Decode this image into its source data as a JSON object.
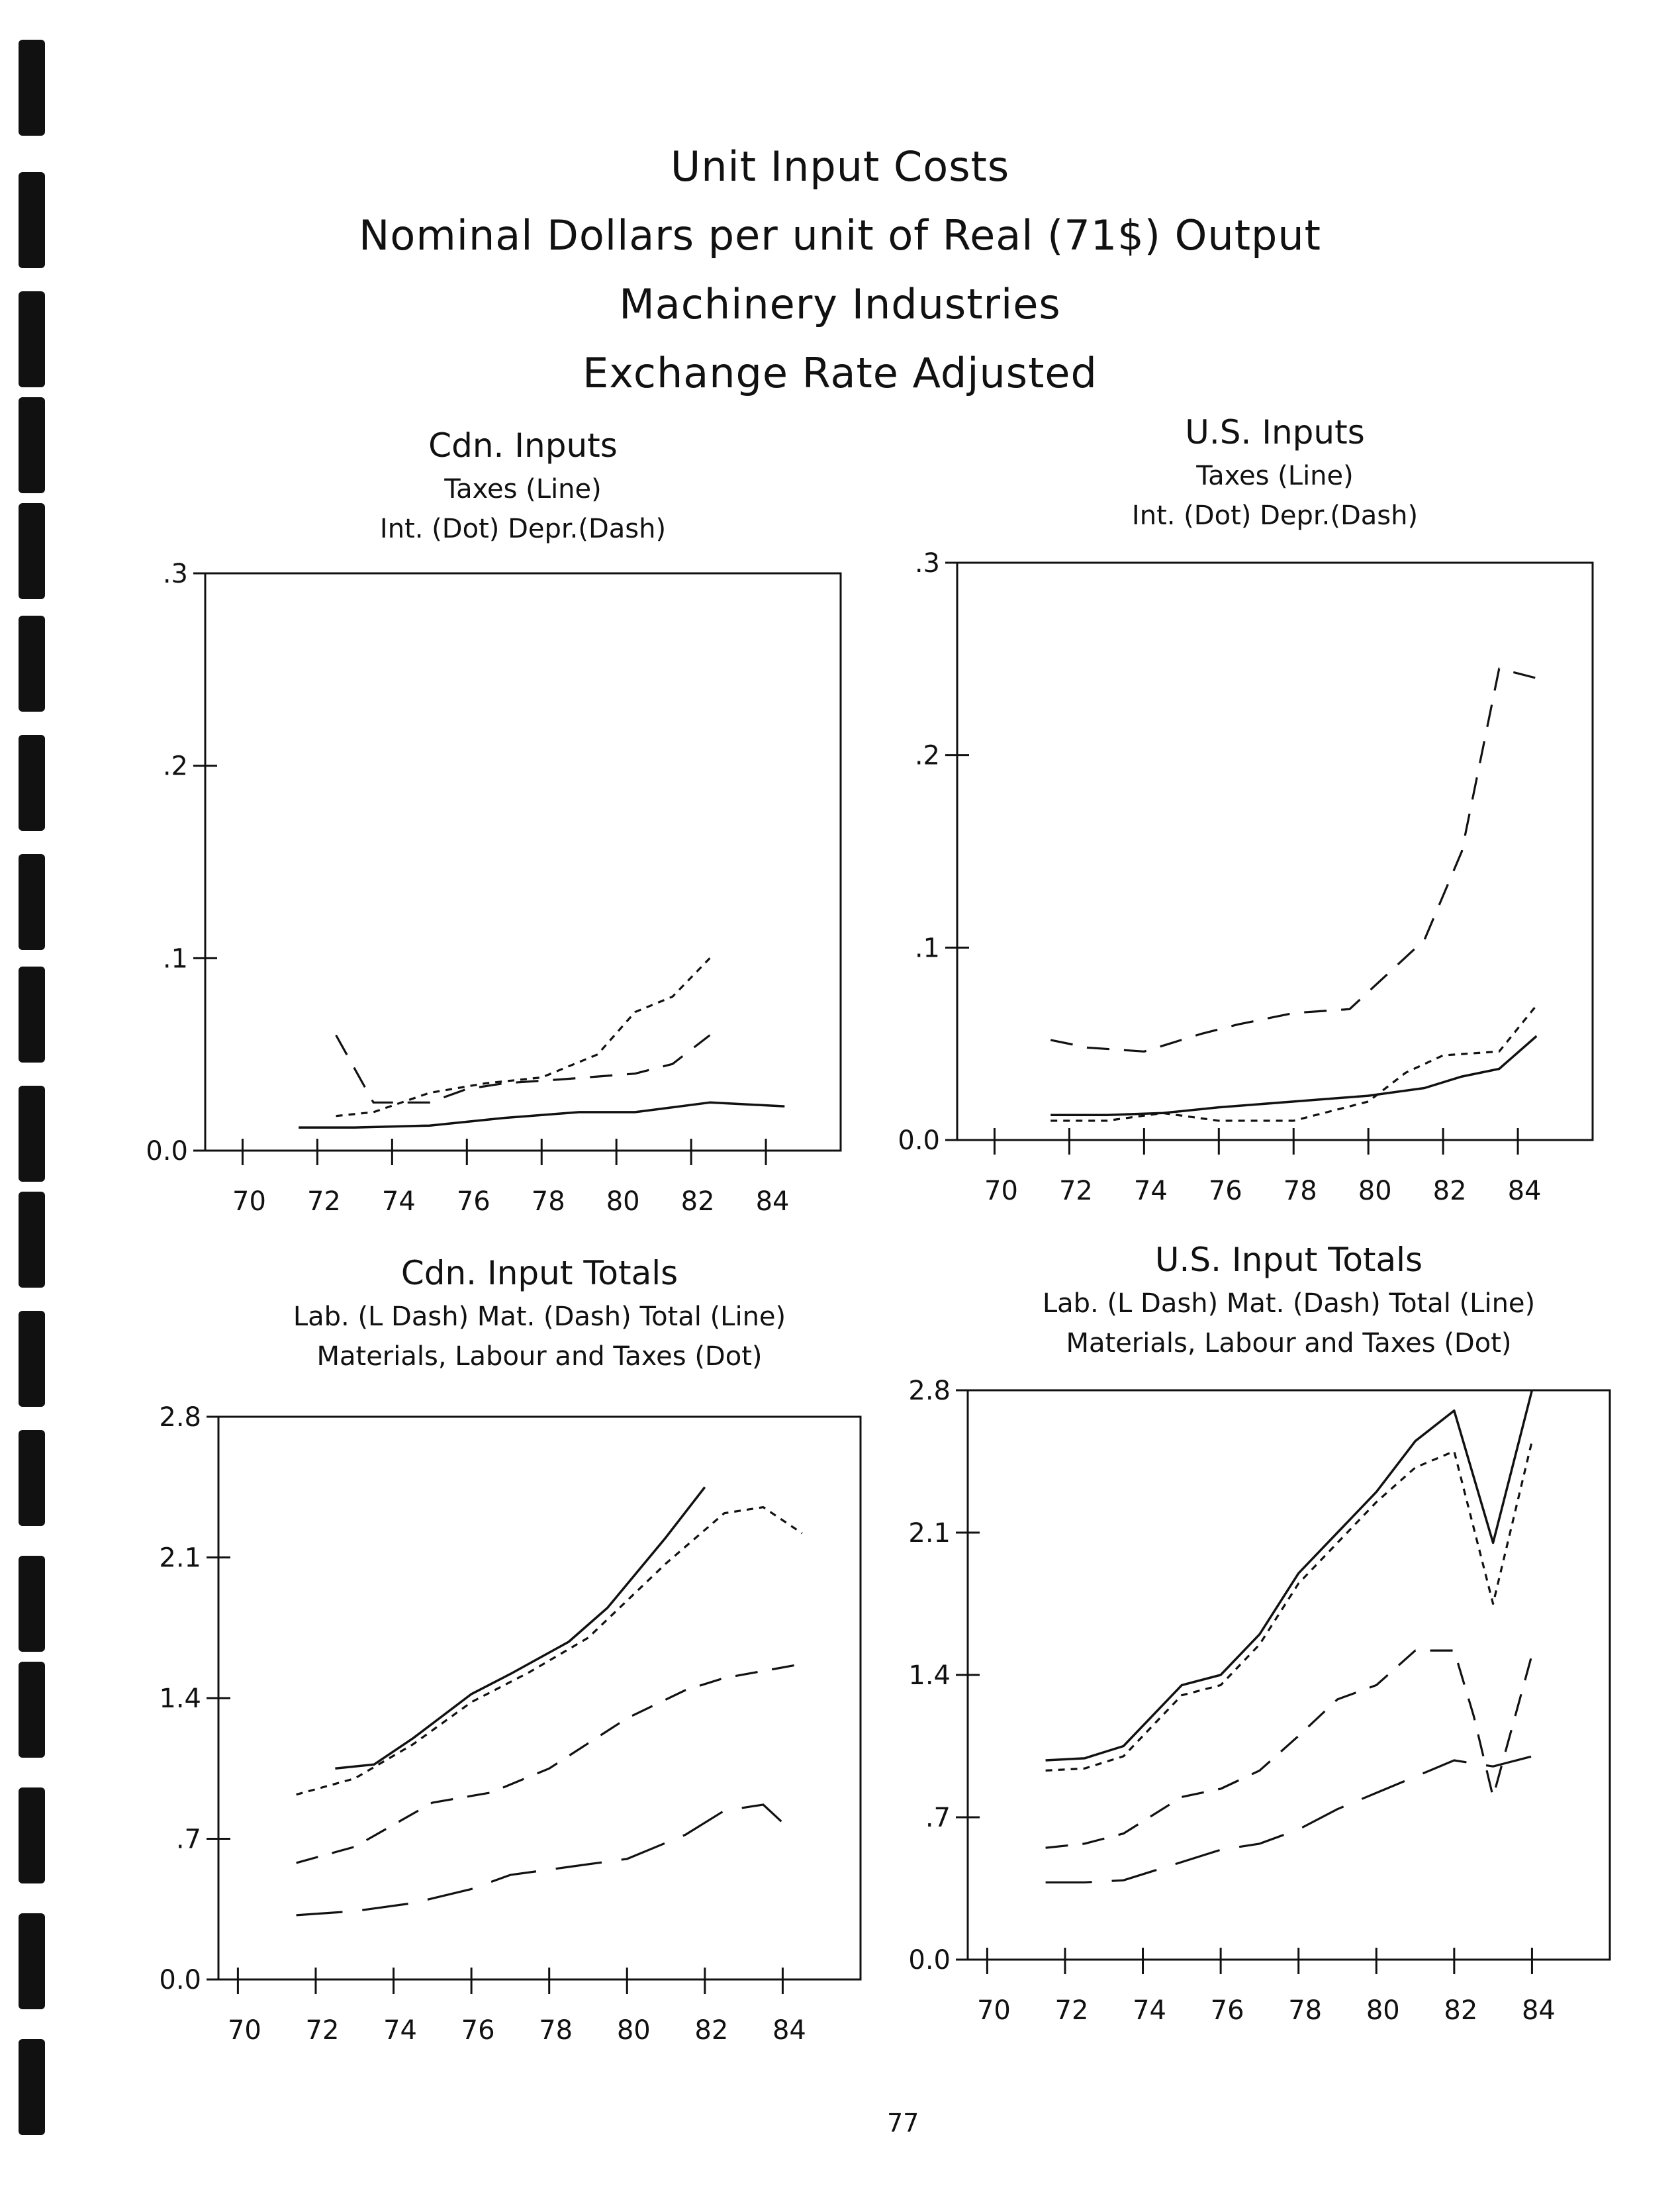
{
  "page": {
    "title_lines": [
      "Unit Input Costs",
      "Nominal Dollars per unit of Real (71$) Output",
      "Machinery Industries",
      "Exchange Rate Adjusted"
    ],
    "page_number": "77"
  },
  "chart_data": [
    {
      "type": "line",
      "title": "Cdn. Inputs",
      "subtitle_lines": [
        "Taxes (Line)",
        "Int. (Dot)      Depr.(Dash)"
      ],
      "xlim": [
        69,
        86
      ],
      "ylim": [
        0,
        0.3
      ],
      "x_ticks": [
        "70",
        "72",
        "74",
        "76",
        "78",
        "80",
        "82",
        "84"
      ],
      "y_ticks": [
        "0.0",
        ".1",
        ".2",
        ".3"
      ],
      "series": [
        {
          "name": "Taxes",
          "style": "line",
          "points": [
            [
              71.5,
              0.012
            ],
            [
              73,
              0.012
            ],
            [
              75,
              0.013
            ],
            [
              77,
              0.017
            ],
            [
              79,
              0.02
            ],
            [
              80.5,
              0.02
            ],
            [
              82.5,
              0.025
            ],
            [
              84.5,
              0.023
            ]
          ]
        },
        {
          "name": "Int.",
          "style": "dot",
          "points": [
            [
              72.5,
              0.018
            ],
            [
              73.5,
              0.02
            ],
            [
              75,
              0.03
            ],
            [
              76.5,
              0.035
            ],
            [
              78,
              0.038
            ],
            [
              79.5,
              0.05
            ],
            [
              80.5,
              0.072
            ],
            [
              81.5,
              0.08
            ],
            [
              82.5,
              0.1
            ]
          ]
        },
        {
          "name": "Depr.",
          "style": "dash",
          "points": [
            [
              72.5,
              0.06
            ],
            [
              73.5,
              0.025
            ],
            [
              75,
              0.025
            ],
            [
              76,
              0.032
            ],
            [
              77,
              0.035
            ],
            [
              78.5,
              0.037
            ],
            [
              80.5,
              0.04
            ],
            [
              81.5,
              0.045
            ],
            [
              82.5,
              0.06
            ]
          ]
        }
      ]
    },
    {
      "type": "line",
      "title": "U.S. Inputs",
      "subtitle_lines": [
        "Taxes (Line)",
        "Int. (Dot)      Depr.(Dash)"
      ],
      "xlim": [
        69,
        86
      ],
      "ylim": [
        0,
        0.3
      ],
      "x_ticks": [
        "70",
        "72",
        "74",
        "76",
        "78",
        "80",
        "82",
        "84"
      ],
      "y_ticks": [
        "0.0",
        ".1",
        ".2",
        ".3"
      ],
      "series": [
        {
          "name": "Taxes",
          "style": "line",
          "points": [
            [
              71.5,
              0.013
            ],
            [
              73,
              0.013
            ],
            [
              74.5,
              0.014
            ],
            [
              76,
              0.017
            ],
            [
              78,
              0.02
            ],
            [
              80,
              0.023
            ],
            [
              81.5,
              0.027
            ],
            [
              82.5,
              0.033
            ],
            [
              83.5,
              0.037
            ],
            [
              84.5,
              0.054
            ]
          ]
        },
        {
          "name": "Int.",
          "style": "dot",
          "points": [
            [
              71.5,
              0.01
            ],
            [
              73,
              0.01
            ],
            [
              74.5,
              0.014
            ],
            [
              76,
              0.01
            ],
            [
              78,
              0.01
            ],
            [
              80,
              0.02
            ],
            [
              81,
              0.035
            ],
            [
              82,
              0.044
            ],
            [
              83.5,
              0.046
            ],
            [
              84.5,
              0.07
            ]
          ]
        },
        {
          "name": "Depr.",
          "style": "dash",
          "points": [
            [
              71.5,
              0.052
            ],
            [
              72.5,
              0.048
            ],
            [
              74,
              0.046
            ],
            [
              75.5,
              0.055
            ],
            [
              76.5,
              0.06
            ],
            [
              78,
              0.066
            ],
            [
              79.5,
              0.068
            ],
            [
              81.5,
              0.104
            ],
            [
              82.5,
              0.15
            ],
            [
              83.5,
              0.245
            ],
            [
              84.5,
              0.24
            ]
          ]
        }
      ]
    },
    {
      "type": "line",
      "title": "Cdn. Input Totals",
      "subtitle_lines": [
        "Lab. (L Dash)      Mat. (Dash)      Total (Line)",
        "Materials, Labour and Taxes (Dot)"
      ],
      "xlim": [
        69.5,
        86
      ],
      "ylim": [
        0,
        2.8
      ],
      "x_ticks": [
        "70",
        "72",
        "74",
        "76",
        "78",
        "80",
        "82",
        "84"
      ],
      "y_ticks": [
        "0.0",
        ".7",
        "1.4",
        "2.1",
        "2.8"
      ],
      "series": [
        {
          "name": "Total",
          "style": "line",
          "points": [
            [
              72.5,
              1.05
            ],
            [
              73.5,
              1.07
            ],
            [
              74.5,
              1.2
            ],
            [
              76,
              1.42
            ],
            [
              77,
              1.52
            ],
            [
              78.5,
              1.68
            ],
            [
              79.5,
              1.85
            ],
            [
              81,
              2.2
            ],
            [
              82,
              2.45
            ]
          ]
        },
        {
          "name": "Materials, Labour and Taxes",
          "style": "dot",
          "points": [
            [
              71.5,
              0.92
            ],
            [
              73,
              1.0
            ],
            [
              74.5,
              1.17
            ],
            [
              76,
              1.38
            ],
            [
              77.5,
              1.53
            ],
            [
              79,
              1.7
            ],
            [
              81,
              2.07
            ],
            [
              82.5,
              2.32
            ],
            [
              83.5,
              2.35
            ],
            [
              84.5,
              2.22
            ]
          ]
        },
        {
          "name": "Mat.",
          "style": "dash",
          "points": [
            [
              71.5,
              0.58
            ],
            [
              73,
              0.66
            ],
            [
              75,
              0.88
            ],
            [
              76.5,
              0.93
            ],
            [
              78,
              1.05
            ],
            [
              80,
              1.3
            ],
            [
              81.5,
              1.44
            ],
            [
              82.5,
              1.5
            ],
            [
              84.5,
              1.57
            ]
          ]
        },
        {
          "name": "Lab.",
          "style": "ldash",
          "points": [
            [
              71.5,
              0.32
            ],
            [
              73,
              0.34
            ],
            [
              74.5,
              0.38
            ],
            [
              76,
              0.45
            ],
            [
              77,
              0.52
            ],
            [
              78.5,
              0.56
            ],
            [
              80,
              0.6
            ],
            [
              81.5,
              0.72
            ],
            [
              82.5,
              0.84
            ],
            [
              83.5,
              0.87
            ],
            [
              84,
              0.78
            ]
          ]
        }
      ]
    },
    {
      "type": "line",
      "title": "U.S. Input Totals",
      "subtitle_lines": [
        "Lab. (L Dash)      Mat. (Dash)      Total (Line)",
        "Materials, Labour and Taxes (Dot)"
      ],
      "xlim": [
        69.5,
        86
      ],
      "ylim": [
        0,
        2.8
      ],
      "x_ticks": [
        "70",
        "72",
        "74",
        "76",
        "78",
        "80",
        "82",
        "84"
      ],
      "y_ticks": [
        "0.0",
        ".7",
        "1.4",
        "2.1",
        "2.8"
      ],
      "series": [
        {
          "name": "Total",
          "style": "line",
          "points": [
            [
              71.5,
              0.98
            ],
            [
              72.5,
              0.99
            ],
            [
              73.5,
              1.05
            ],
            [
              75,
              1.35
            ],
            [
              76,
              1.4
            ],
            [
              77,
              1.6
            ],
            [
              78,
              1.9
            ],
            [
              79,
              2.1
            ],
            [
              80,
              2.3
            ],
            [
              81,
              2.55
            ],
            [
              82,
              2.7
            ],
            [
              83,
              2.05
            ],
            [
              84,
              2.8
            ]
          ]
        },
        {
          "name": "Materials, Labour and Taxes",
          "style": "dot",
          "points": [
            [
              71.5,
              0.93
            ],
            [
              72.5,
              0.94
            ],
            [
              73.5,
              1.0
            ],
            [
              75,
              1.3
            ],
            [
              76,
              1.35
            ],
            [
              77,
              1.55
            ],
            [
              78,
              1.85
            ],
            [
              79,
              2.05
            ],
            [
              80,
              2.25
            ],
            [
              81,
              2.42
            ],
            [
              82,
              2.5
            ],
            [
              83,
              1.75
            ],
            [
              84,
              2.55
            ]
          ]
        },
        {
          "name": "Mat.",
          "style": "dash",
          "points": [
            [
              71.5,
              0.55
            ],
            [
              72.5,
              0.57
            ],
            [
              73.5,
              0.62
            ],
            [
              75,
              0.8
            ],
            [
              76,
              0.84
            ],
            [
              77,
              0.93
            ],
            [
              78,
              1.1
            ],
            [
              79,
              1.28
            ],
            [
              80,
              1.35
            ],
            [
              81,
              1.52
            ],
            [
              82,
              1.52
            ],
            [
              82.5,
              1.2
            ],
            [
              83,
              0.8
            ],
            [
              84,
              1.5
            ]
          ]
        },
        {
          "name": "Lab.",
          "style": "ldash",
          "points": [
            [
              71.5,
              0.38
            ],
            [
              72.5,
              0.38
            ],
            [
              73.5,
              0.39
            ],
            [
              75,
              0.48
            ],
            [
              76,
              0.54
            ],
            [
              77,
              0.57
            ],
            [
              78,
              0.64
            ],
            [
              79,
              0.74
            ],
            [
              80,
              0.82
            ],
            [
              81,
              0.9
            ],
            [
              82,
              0.98
            ],
            [
              83,
              0.95
            ],
            [
              84,
              1.0
            ]
          ]
        }
      ]
    }
  ]
}
